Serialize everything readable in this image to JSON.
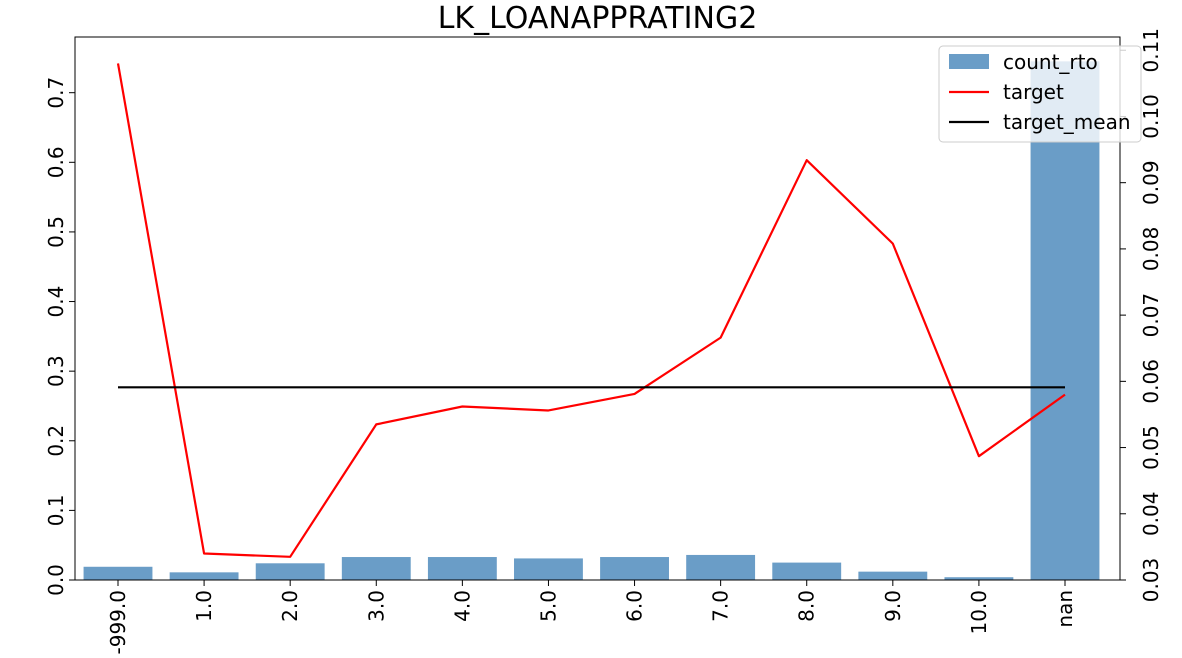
{
  "chart_data": {
    "type": "bar",
    "title": "LK_LOANAPPRATING2",
    "categories": [
      "-999.0",
      "1.0",
      "2.0",
      "3.0",
      "4.0",
      "5.0",
      "6.0",
      "7.0",
      "8.0",
      "9.0",
      "10.0",
      "nan"
    ],
    "series": [
      {
        "name": "count_rto",
        "type": "bar",
        "axis": "left",
        "color": "#6a9dc7",
        "values": [
          0.019,
          0.011,
          0.024,
          0.033,
          0.033,
          0.031,
          0.033,
          0.036,
          0.025,
          0.012,
          0.004,
          0.745
        ]
      },
      {
        "name": "target",
        "type": "line",
        "axis": "right",
        "color": "#ff0000",
        "values": [
          0.108,
          0.034,
          0.0335,
          0.0535,
          0.0562,
          0.0556,
          0.0581,
          0.0666,
          0.0934,
          0.0808,
          0.0487,
          0.058
        ]
      },
      {
        "name": "target_mean",
        "type": "line",
        "axis": "right",
        "color": "#000000",
        "values": [
          0.0591,
          0.0591,
          0.0591,
          0.0591,
          0.0591,
          0.0591,
          0.0591,
          0.0591,
          0.0591,
          0.0591,
          0.0591,
          0.0591
        ]
      }
    ],
    "y_left": {
      "lim": [
        0,
        0.78
      ],
      "ticks": [
        0.0,
        0.1,
        0.2,
        0.3,
        0.4,
        0.5,
        0.6,
        0.7
      ],
      "tick_labels": [
        "0.0",
        "0.1",
        "0.2",
        "0.3",
        "0.4",
        "0.5",
        "0.6",
        "0.7"
      ]
    },
    "y_right": {
      "lim": [
        0.03,
        0.112
      ],
      "ticks": [
        0.03,
        0.04,
        0.05,
        0.06,
        0.07,
        0.08,
        0.09,
        0.1,
        0.11
      ],
      "tick_labels": [
        "0.03",
        "0.04",
        "0.05",
        "0.06",
        "0.07",
        "0.08",
        "0.09",
        "0.10",
        "0.11"
      ]
    },
    "grid": false,
    "legend": "top-right"
  }
}
